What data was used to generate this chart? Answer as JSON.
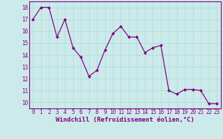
{
  "x": [
    0,
    1,
    2,
    3,
    4,
    5,
    6,
    7,
    8,
    9,
    10,
    11,
    12,
    13,
    14,
    15,
    16,
    17,
    18,
    19,
    20,
    21,
    22,
    23
  ],
  "y": [
    17.0,
    18.0,
    18.0,
    15.5,
    17.0,
    14.6,
    13.8,
    12.2,
    12.7,
    14.4,
    15.8,
    16.4,
    15.5,
    15.5,
    14.2,
    14.6,
    14.8,
    11.0,
    10.7,
    11.1,
    11.1,
    11.0,
    9.9,
    9.9
  ],
  "line_color": "#800080",
  "marker": "D",
  "marker_size": 2,
  "linewidth": 0.9,
  "xlabel": "Windchill (Refroidissement éolien,°C)",
  "xlim": [
    -0.5,
    23.5
  ],
  "ylim": [
    9.5,
    18.5
  ],
  "yticks": [
    10,
    11,
    12,
    13,
    14,
    15,
    16,
    17,
    18
  ],
  "xticks": [
    0,
    1,
    2,
    3,
    4,
    5,
    6,
    7,
    8,
    9,
    10,
    11,
    12,
    13,
    14,
    15,
    16,
    17,
    18,
    19,
    20,
    21,
    22,
    23
  ],
  "xtick_labels": [
    "0",
    "1",
    "2",
    "3",
    "4",
    "5",
    "6",
    "7",
    "8",
    "9",
    "10",
    "11",
    "12",
    "13",
    "14",
    "15",
    "16",
    "17",
    "18",
    "19",
    "20",
    "21",
    "22",
    "23"
  ],
  "grid_color": "#aad8d8",
  "bg_color": "#cceaea",
  "xlabel_fontsize": 6.5,
  "tick_fontsize": 5.5,
  "xlabel_color": "#800080",
  "tick_color": "#800080"
}
